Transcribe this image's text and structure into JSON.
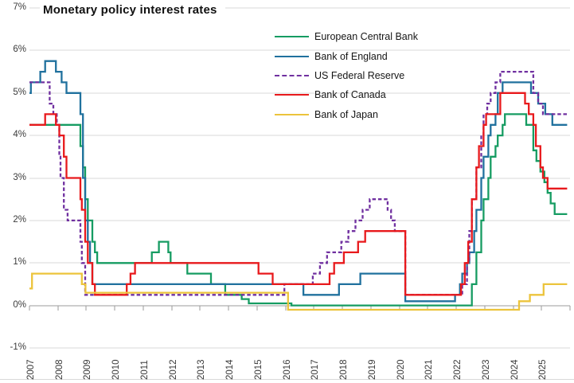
{
  "title": "Monetary policy interest rates",
  "chart_data": {
    "type": "line",
    "subtype": "step",
    "title": "Monetary policy interest rates",
    "grid": true,
    "legend_position": "top-right-overlay",
    "y_axis": {
      "min": -1,
      "max": 7,
      "unit": "%",
      "ticks": [
        "7%",
        "6%",
        "5%",
        "4%",
        "3%",
        "2%",
        "1%",
        "0%",
        "-1%"
      ],
      "tick_values": [
        7,
        6,
        5,
        4,
        3,
        2,
        1,
        0,
        -1
      ]
    },
    "x_axis": {
      "min": 2007,
      "max": 2026,
      "ticks": [
        "2007",
        "2008",
        "2009",
        "2010",
        "2011",
        "2012",
        "2013",
        "2014",
        "2015",
        "2016",
        "2017",
        "2018",
        "2019",
        "2020",
        "2021",
        "2022",
        "2023",
        "2024",
        "2025"
      ],
      "tick_values": [
        2007,
        2008,
        2009,
        2010,
        2011,
        2012,
        2013,
        2014,
        2015,
        2016,
        2017,
        2018,
        2019,
        2020,
        2021,
        2022,
        2023,
        2024,
        2025
      ]
    },
    "x_end": 2025.9,
    "series": [
      {
        "name": "European Central Bank",
        "id": "ecb",
        "color": "#169c62",
        "dash": "solid",
        "points": [
          [
            2007.0,
            4.25
          ],
          [
            2008.79,
            3.75
          ],
          [
            2008.88,
            3.25
          ],
          [
            2008.96,
            2.5
          ],
          [
            2009.05,
            2.0
          ],
          [
            2009.21,
            1.5
          ],
          [
            2009.3,
            1.25
          ],
          [
            2009.38,
            1.0
          ],
          [
            2011.3,
            1.25
          ],
          [
            2011.55,
            1.5
          ],
          [
            2011.88,
            1.25
          ],
          [
            2011.96,
            1.0
          ],
          [
            2012.55,
            0.75
          ],
          [
            2013.38,
            0.5
          ],
          [
            2013.88,
            0.25
          ],
          [
            2014.46,
            0.15
          ],
          [
            2014.71,
            0.05
          ],
          [
            2016.21,
            0.0
          ],
          [
            2022.55,
            0.5
          ],
          [
            2022.71,
            1.25
          ],
          [
            2022.88,
            2.0
          ],
          [
            2022.96,
            2.5
          ],
          [
            2023.13,
            3.0
          ],
          [
            2023.21,
            3.5
          ],
          [
            2023.38,
            3.75
          ],
          [
            2023.46,
            4.0
          ],
          [
            2023.63,
            4.25
          ],
          [
            2023.71,
            4.5
          ],
          [
            2024.46,
            4.25
          ],
          [
            2024.71,
            3.65
          ],
          [
            2024.82,
            3.4
          ],
          [
            2024.96,
            3.15
          ],
          [
            2025.1,
            2.9
          ],
          [
            2025.21,
            2.65
          ],
          [
            2025.32,
            2.4
          ],
          [
            2025.46,
            2.15
          ]
        ]
      },
      {
        "name": "Bank of England",
        "id": "boe",
        "color": "#20719e",
        "dash": "solid",
        "points": [
          [
            2007.0,
            5.0
          ],
          [
            2007.05,
            5.25
          ],
          [
            2007.38,
            5.5
          ],
          [
            2007.55,
            5.75
          ],
          [
            2007.93,
            5.5
          ],
          [
            2008.13,
            5.25
          ],
          [
            2008.3,
            5.0
          ],
          [
            2008.79,
            4.5
          ],
          [
            2008.88,
            3.0
          ],
          [
            2008.96,
            2.0
          ],
          [
            2009.05,
            1.5
          ],
          [
            2009.13,
            1.0
          ],
          [
            2009.21,
            0.5
          ],
          [
            2016.63,
            0.25
          ],
          [
            2017.88,
            0.5
          ],
          [
            2018.63,
            0.75
          ],
          [
            2020.21,
            0.1
          ],
          [
            2021.96,
            0.25
          ],
          [
            2022.13,
            0.5
          ],
          [
            2022.21,
            0.75
          ],
          [
            2022.38,
            1.0
          ],
          [
            2022.46,
            1.25
          ],
          [
            2022.63,
            1.75
          ],
          [
            2022.71,
            2.25
          ],
          [
            2022.88,
            3.0
          ],
          [
            2022.96,
            3.5
          ],
          [
            2023.13,
            4.0
          ],
          [
            2023.21,
            4.25
          ],
          [
            2023.38,
            4.5
          ],
          [
            2023.46,
            5.0
          ],
          [
            2023.63,
            5.25
          ],
          [
            2024.63,
            5.0
          ],
          [
            2024.88,
            4.75
          ],
          [
            2025.13,
            4.5
          ],
          [
            2025.38,
            4.25
          ]
        ]
      },
      {
        "name": "US Federal Reserve",
        "id": "fed",
        "color": "#7030a0",
        "dash": "dashed",
        "points": [
          [
            2007.0,
            5.25
          ],
          [
            2007.71,
            4.75
          ],
          [
            2007.84,
            4.5
          ],
          [
            2007.96,
            4.25
          ],
          [
            2008.05,
            3.5
          ],
          [
            2008.09,
            3.0
          ],
          [
            2008.21,
            2.25
          ],
          [
            2008.34,
            2.0
          ],
          [
            2008.79,
            1.5
          ],
          [
            2008.84,
            1.0
          ],
          [
            2008.96,
            0.25
          ],
          [
            2015.96,
            0.5
          ],
          [
            2016.96,
            0.75
          ],
          [
            2017.21,
            1.0
          ],
          [
            2017.46,
            1.25
          ],
          [
            2017.96,
            1.5
          ],
          [
            2018.21,
            1.75
          ],
          [
            2018.46,
            2.0
          ],
          [
            2018.71,
            2.25
          ],
          [
            2018.96,
            2.5
          ],
          [
            2019.59,
            2.25
          ],
          [
            2019.71,
            2.0
          ],
          [
            2019.84,
            1.75
          ],
          [
            2020.21,
            0.25
          ],
          [
            2022.21,
            0.5
          ],
          [
            2022.38,
            1.0
          ],
          [
            2022.46,
            1.75
          ],
          [
            2022.55,
            2.5
          ],
          [
            2022.71,
            3.25
          ],
          [
            2022.88,
            4.0
          ],
          [
            2022.96,
            4.5
          ],
          [
            2023.09,
            4.75
          ],
          [
            2023.21,
            5.0
          ],
          [
            2023.38,
            5.25
          ],
          [
            2023.55,
            5.5
          ],
          [
            2024.71,
            5.0
          ],
          [
            2024.88,
            4.75
          ],
          [
            2025.05,
            4.5
          ]
        ]
      },
      {
        "name": "Bank of Canada",
        "id": "boc",
        "color": "#e8191c",
        "dash": "solid",
        "points": [
          [
            2007.0,
            4.25
          ],
          [
            2007.55,
            4.5
          ],
          [
            2007.93,
            4.25
          ],
          [
            2008.05,
            4.0
          ],
          [
            2008.21,
            3.5
          ],
          [
            2008.3,
            3.0
          ],
          [
            2008.79,
            2.5
          ],
          [
            2008.84,
            2.25
          ],
          [
            2008.96,
            1.5
          ],
          [
            2009.05,
            1.0
          ],
          [
            2009.21,
            0.5
          ],
          [
            2009.3,
            0.25
          ],
          [
            2010.42,
            0.5
          ],
          [
            2010.55,
            0.75
          ],
          [
            2010.71,
            1.0
          ],
          [
            2015.05,
            0.75
          ],
          [
            2015.55,
            0.5
          ],
          [
            2017.55,
            0.75
          ],
          [
            2017.71,
            1.0
          ],
          [
            2018.05,
            1.25
          ],
          [
            2018.55,
            1.5
          ],
          [
            2018.8,
            1.75
          ],
          [
            2020.21,
            0.25
          ],
          [
            2022.17,
            0.5
          ],
          [
            2022.3,
            1.0
          ],
          [
            2022.42,
            1.5
          ],
          [
            2022.55,
            2.5
          ],
          [
            2022.71,
            3.25
          ],
          [
            2022.8,
            3.75
          ],
          [
            2022.96,
            4.25
          ],
          [
            2023.05,
            4.5
          ],
          [
            2023.55,
            5.0
          ],
          [
            2024.42,
            4.75
          ],
          [
            2024.55,
            4.5
          ],
          [
            2024.71,
            4.25
          ],
          [
            2024.8,
            3.75
          ],
          [
            2024.96,
            3.25
          ],
          [
            2025.05,
            3.0
          ],
          [
            2025.21,
            2.75
          ]
        ]
      },
      {
        "name": "Bank of Japan",
        "id": "boj",
        "color": "#ecc43c",
        "dash": "solid",
        "points": [
          [
            2007.0,
            0.4
          ],
          [
            2007.09,
            0.75
          ],
          [
            2008.84,
            0.5
          ],
          [
            2008.97,
            0.3
          ],
          [
            2016.09,
            -0.1
          ],
          [
            2024.21,
            0.1
          ],
          [
            2024.59,
            0.25
          ],
          [
            2025.07,
            0.5
          ]
        ]
      }
    ],
    "colors": {
      "gridline": "#d9d9d9",
      "axis": "#9b9b9b",
      "tick_label": "#3b3b3b",
      "title": "#111111"
    }
  }
}
